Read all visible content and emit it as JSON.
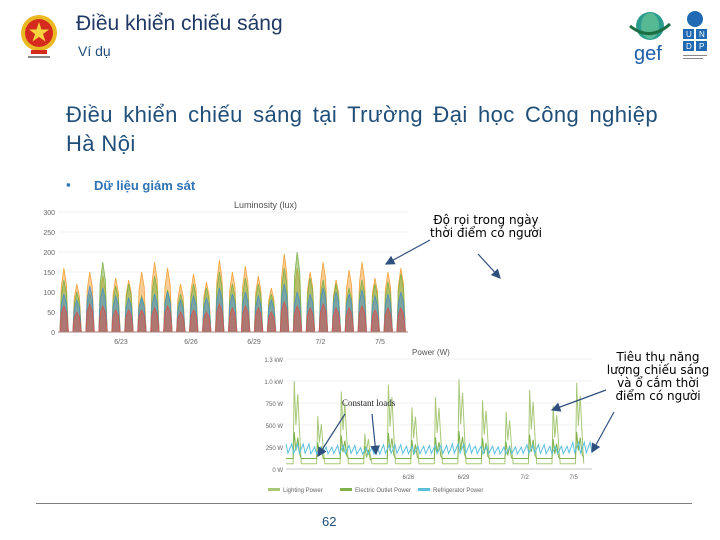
{
  "header": {
    "title": "Điều khiển chiếu sáng",
    "subtitle": "Ví dụ",
    "emblem_icon": "vietnam-national-emblem",
    "gef_logo_text": "gef",
    "undp_logo_text": "UNDP"
  },
  "main": {
    "title": "Điều khiển chiếu sáng tại Trường Đại học Công nghiệp Hà Nội",
    "bullet_marker": "▪",
    "bullet_text": "Dữ liệu giám sát"
  },
  "annotations": {
    "illuminance": "Độ rọi trong ngày thời điểm có người",
    "power": "Tiêu thụ năng lượng chiếu sáng và ổ cắm thời điểm có người",
    "constant_loads": "Constant loads"
  },
  "chart_data": [
    {
      "type": "area",
      "title": "Luminosity (lux)",
      "y_ticks": [
        "300",
        "250",
        "200",
        "150",
        "100",
        "50",
        "0"
      ],
      "ylim": [
        0,
        300
      ],
      "x_ticks": [
        "6/23",
        "6/26",
        "6/29",
        "7/2",
        "7/5"
      ],
      "series": [
        {
          "color": "#f2a33a",
          "daily_peaks": [
            160,
            120,
            150,
            140,
            135,
            130,
            150,
            175,
            160,
            120,
            145,
            125,
            180,
            150,
            165,
            140,
            110,
            195,
            160,
            150,
            175,
            130,
            155,
            175,
            135,
            150,
            160
          ]
        },
        {
          "color": "#7fb24a",
          "daily_peaks": [
            130,
            100,
            95,
            175,
            115,
            120,
            90,
            140,
            105,
            95,
            120,
            110,
            150,
            120,
            135,
            120,
            95,
            160,
            200,
            135,
            130,
            120,
            110,
            130,
            120,
            125,
            145
          ]
        },
        {
          "color": "#4a90c8",
          "daily_peaks": [
            95,
            80,
            115,
            110,
            90,
            85,
            85,
            95,
            100,
            80,
            90,
            85,
            110,
            95,
            100,
            90,
            80,
            120,
            100,
            95,
            110,
            100,
            95,
            105,
            90,
            95,
            100
          ]
        },
        {
          "color": "#d9534f",
          "daily_peaks": [
            65,
            50,
            70,
            65,
            55,
            55,
            55,
            60,
            65,
            50,
            55,
            50,
            70,
            60,
            65,
            60,
            50,
            75,
            65,
            60,
            70,
            60,
            60,
            65,
            55,
            60,
            60
          ]
        }
      ],
      "grid": true
    },
    {
      "type": "line",
      "title": "Power (W)",
      "y_ticks": [
        "1.3 kW",
        "1.0 kW",
        "750 W",
        "500 W",
        "250 W",
        "0 W"
      ],
      "ylim": [
        0,
        1250
      ],
      "x_ticks": [
        "6/26",
        "6/29",
        "7/2",
        "7/5"
      ],
      "series": [
        {
          "name": "Lighting Power",
          "color": "#a8c878",
          "daily_peaks": [
            1000,
            600,
            880,
            400,
            960,
            700,
            820,
            1020,
            780,
            650,
            900,
            720,
            980
          ]
        },
        {
          "name": "Electric Outlet Power",
          "color": "#7fb24a",
          "daily_peaks": [
            420,
            300,
            380,
            260,
            410,
            330,
            360,
            430,
            350,
            310,
            390,
            340,
            420
          ]
        },
        {
          "name": "Refrigerator Power",
          "color": "#5bc0de",
          "baseline": 150,
          "daily_peaks": [
            300,
            260,
            280,
            250,
            290,
            270,
            280,
            300,
            270,
            260,
            290,
            270,
            320
          ]
        }
      ],
      "legend": "bottom",
      "grid": true
    }
  ],
  "footer": {
    "page_number": "62"
  }
}
